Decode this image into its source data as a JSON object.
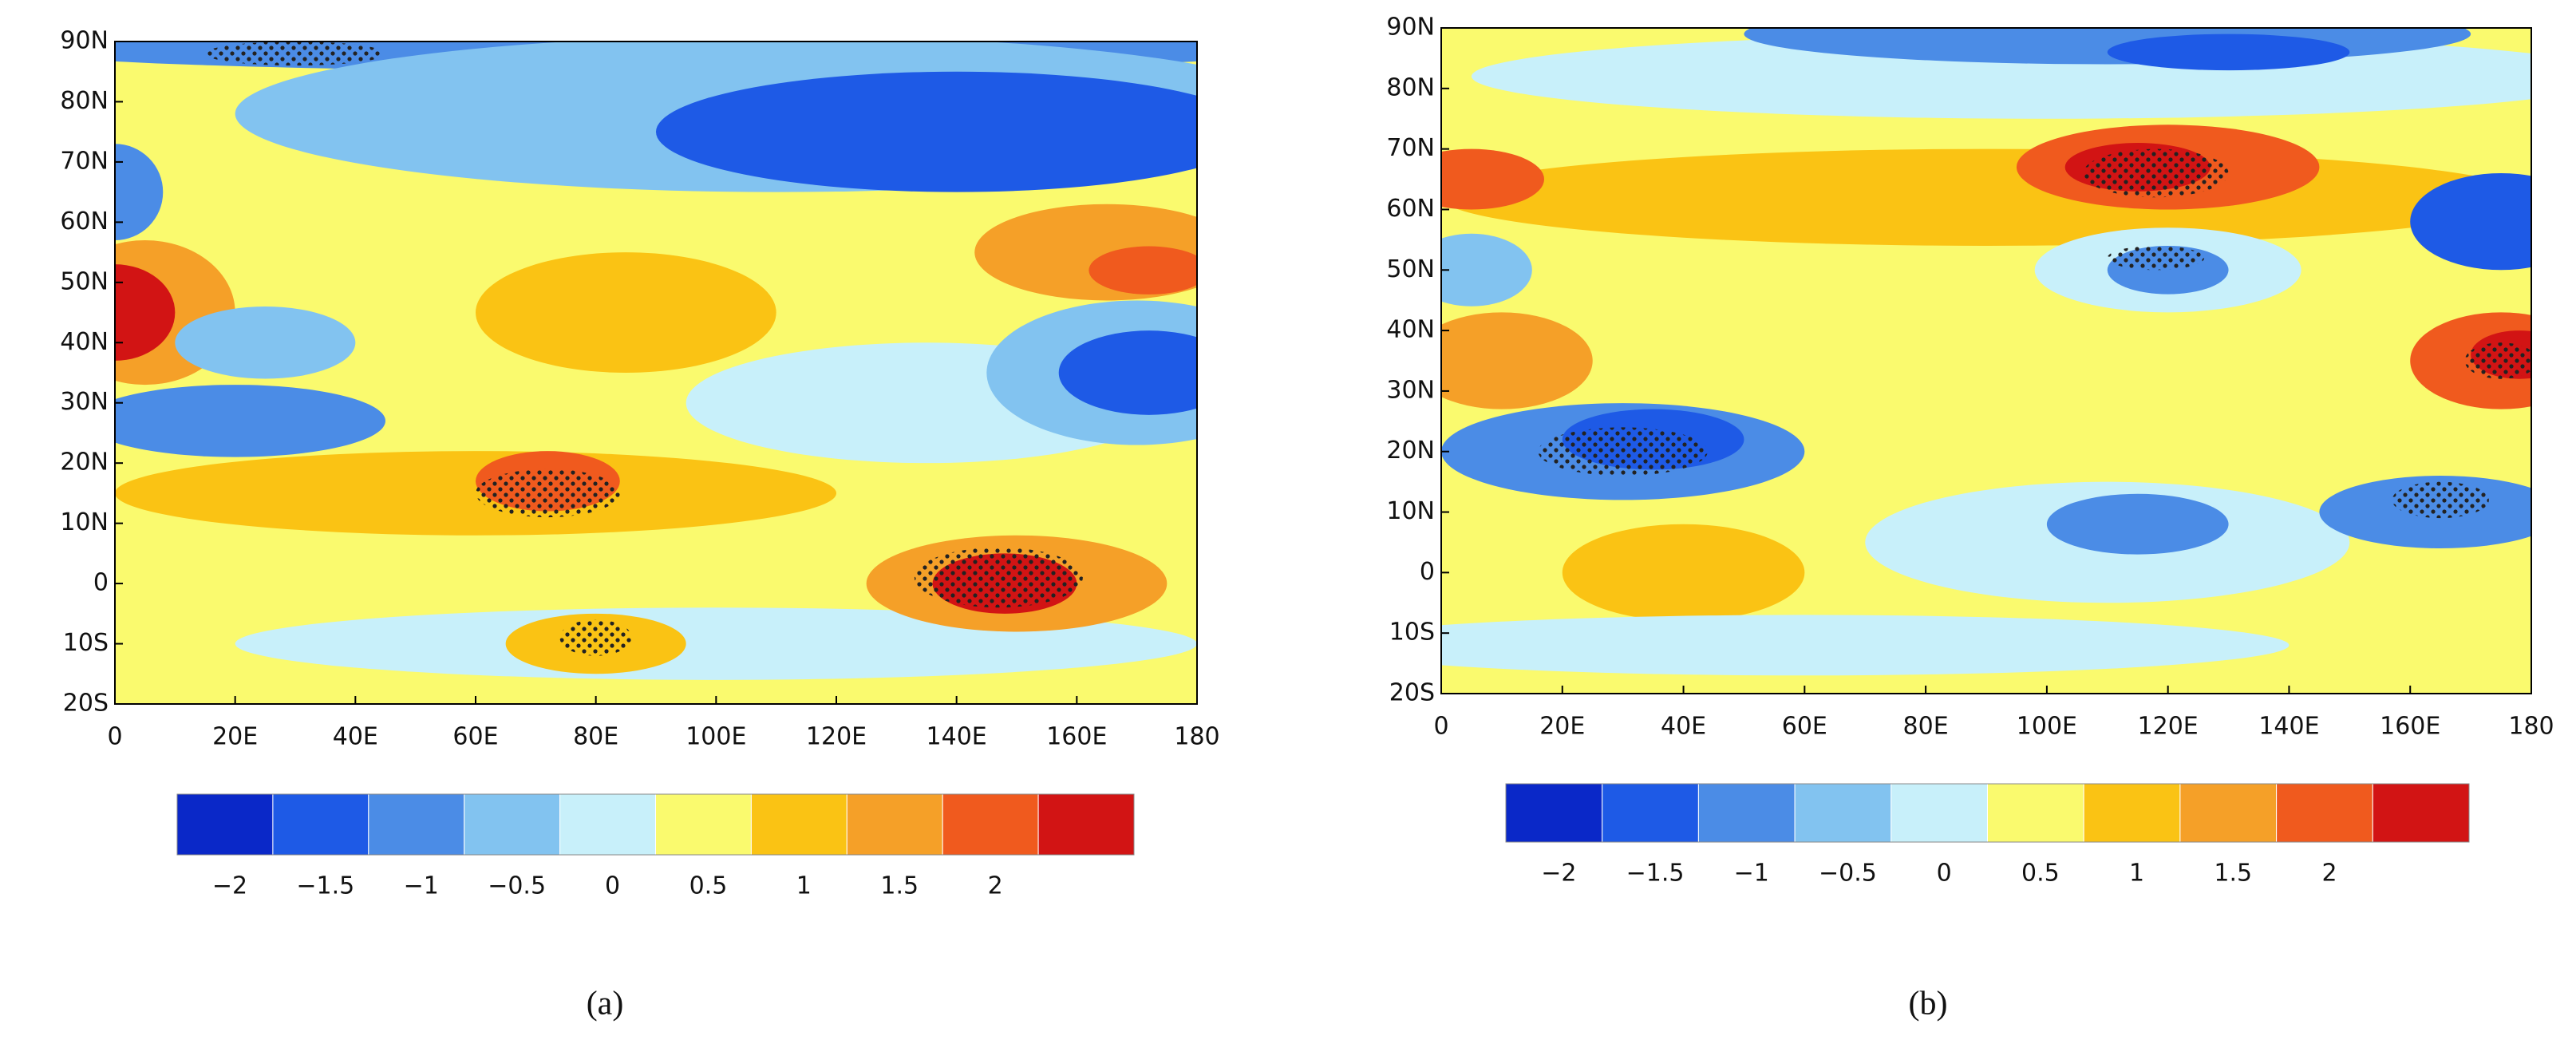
{
  "panels": [
    {
      "label": "(a)",
      "lat_ticks": [
        "90N",
        "80N",
        "70N",
        "60N",
        "50N",
        "40N",
        "30N",
        "20N",
        "10N",
        "0",
        "10S",
        "20S"
      ],
      "lon_ticks": [
        "0",
        "20E",
        "40E",
        "60E",
        "80E",
        "100E",
        "120E",
        "140E",
        "160E",
        "180"
      ],
      "colorbar": {
        "labels": [
          "−2",
          "−1.5",
          "−1",
          "−0.5",
          "0",
          "0.5",
          "1",
          "1.5",
          "2"
        ]
      }
    },
    {
      "label": "(b)",
      "lat_ticks": [
        "90N",
        "80N",
        "70N",
        "60N",
        "50N",
        "40N",
        "30N",
        "20N",
        "10N",
        "0",
        "10S",
        "20S"
      ],
      "lon_ticks": [
        "0",
        "20E",
        "40E",
        "60E",
        "80E",
        "100E",
        "120E",
        "140E",
        "160E",
        "180"
      ],
      "colorbar": {
        "labels": [
          "−2",
          "−1.5",
          "−1",
          "−0.5",
          "0",
          "0.5",
          "1",
          "1.5",
          "2"
        ]
      }
    }
  ],
  "colors": [
    "#0a28c8",
    "#1e5ae6",
    "#4b8ce6",
    "#82c3f0",
    "#c8f0fa",
    "#fafa6e",
    "#fac314",
    "#f5a028",
    "#f05a1e",
    "#d21414"
  ]
}
